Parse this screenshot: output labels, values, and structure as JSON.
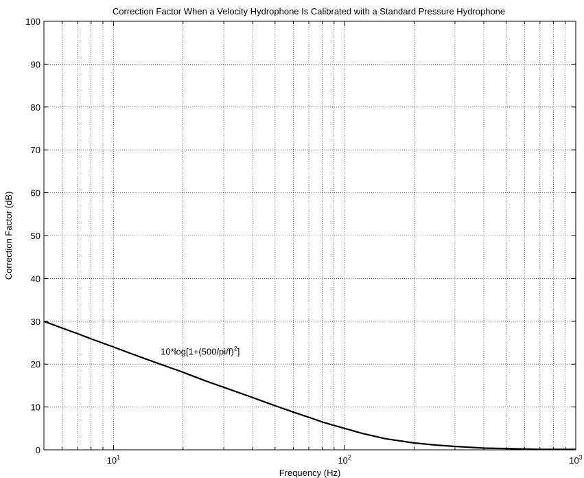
{
  "chart_data": {
    "type": "line",
    "title": "Correction Factor When a Velocity Hydrophone Is Calibrated with a Standard Pressure Hydrophone",
    "xlabel": "Frequency (Hz)",
    "ylabel": "Correction Factor (dB)",
    "xscale": "log",
    "xlim": [
      5,
      1000
    ],
    "ylim": [
      0,
      100
    ],
    "grid": true,
    "x_ticks": [
      {
        "base": "10",
        "exp": "1",
        "value": 10
      },
      {
        "base": "10",
        "exp": "2",
        "value": 100
      },
      {
        "base": "10",
        "exp": "3",
        "value": 1000
      }
    ],
    "y_ticks": [
      0,
      10,
      20,
      30,
      40,
      50,
      60,
      70,
      80,
      90,
      100
    ],
    "annotation": {
      "text_before": "10*log[1+(500/pi/f)",
      "superscript": "2",
      "text_after": "]",
      "anchor_x": 16,
      "anchor_y": 23
    },
    "series": [
      {
        "x": [
          5,
          6,
          7,
          8,
          9,
          10,
          12,
          15,
          20,
          25,
          30,
          40,
          50,
          60,
          70,
          80,
          90,
          100,
          120,
          150,
          200,
          250,
          300,
          400,
          500,
          600,
          700,
          800,
          900,
          1000
        ],
        "y": [
          30.0,
          28.4,
          27.1,
          25.9,
          24.9,
          24.0,
          22.4,
          20.5,
          18.1,
          16.1,
          14.6,
          12.2,
          10.3,
          8.8,
          7.6,
          6.5,
          5.7,
          5.0,
          3.8,
          2.6,
          1.6,
          1.1,
          0.8,
          0.4,
          0.3,
          0.2,
          0.1,
          0.1,
          0.1,
          0.1
        ]
      }
    ]
  }
}
